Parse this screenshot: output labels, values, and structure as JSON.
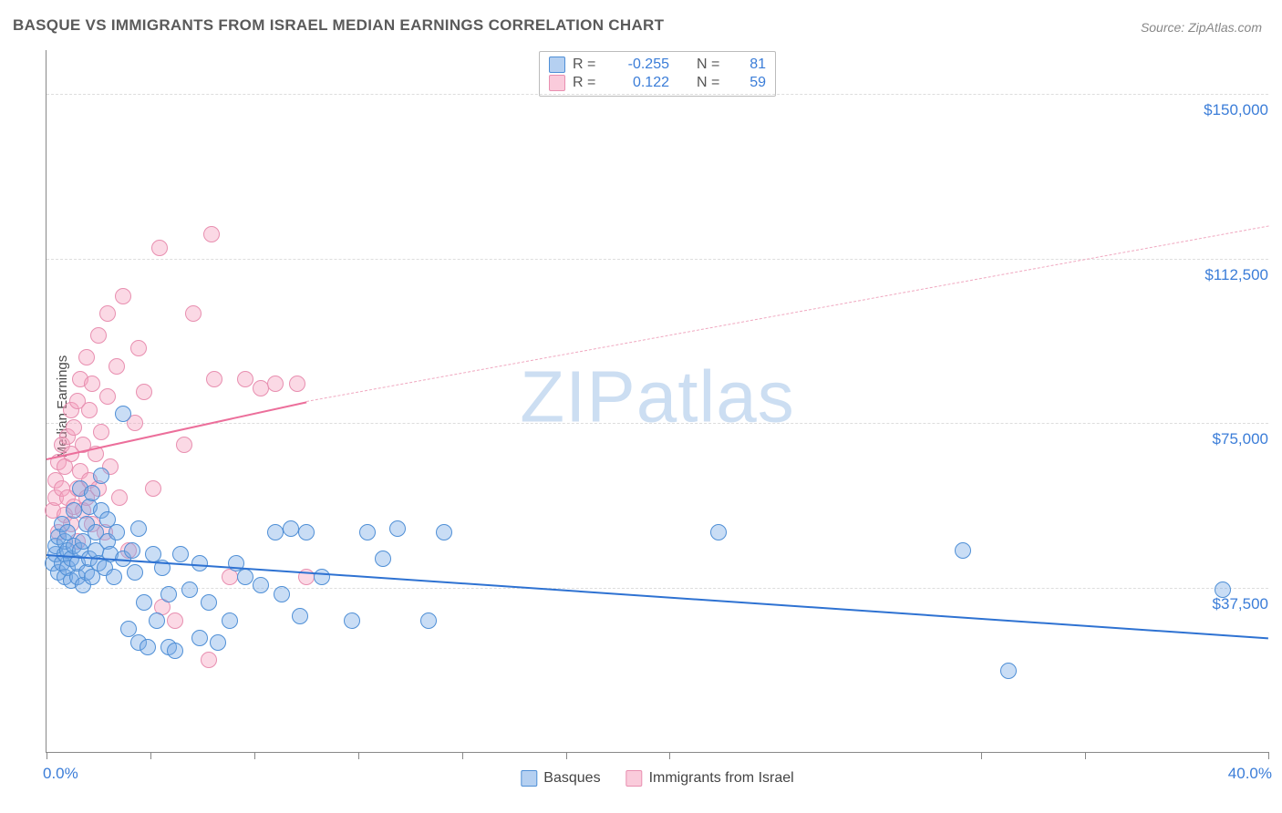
{
  "title": "BASQUE VS IMMIGRANTS FROM ISRAEL MEDIAN EARNINGS CORRELATION CHART",
  "source": "Source: ZipAtlas.com",
  "ylabel": "Median Earnings",
  "watermark_zip": "ZIP",
  "watermark_atlas": "atlas",
  "chart": {
    "type": "scatter",
    "xlim": [
      0,
      40
    ],
    "ylim": [
      0,
      160000
    ],
    "x_tick_positions": [
      0,
      3.4,
      6.8,
      10.2,
      13.6,
      17.0,
      20.4,
      30.6,
      34.0,
      40.0
    ],
    "x_axis_labels": {
      "left": "0.0%",
      "right": "40.0%"
    },
    "y_gridlines": [
      37500,
      75000,
      112500,
      150000
    ],
    "y_tick_labels": [
      "$37,500",
      "$75,000",
      "$112,500",
      "$150,000"
    ],
    "background_color": "#ffffff",
    "grid_color": "#dddddd",
    "axis_color": "#888888",
    "series": {
      "basques": {
        "label": "Basques",
        "legend_label": "Basques",
        "color_fill": "rgba(120,170,230,0.40)",
        "color_stroke": "#4f8fd6",
        "marker_size": 18,
        "R": "-0.255",
        "N": "81",
        "trend": {
          "x1": 0,
          "y1": 45000,
          "x2": 40,
          "y2": 26000,
          "color": "#2e72d2",
          "width": 2.4,
          "dash": false
        },
        "points": [
          [
            0.2,
            43000
          ],
          [
            0.3,
            45000
          ],
          [
            0.3,
            47000
          ],
          [
            0.4,
            41000
          ],
          [
            0.4,
            49000
          ],
          [
            0.5,
            43000
          ],
          [
            0.5,
            52000
          ],
          [
            0.6,
            40000
          ],
          [
            0.6,
            45000
          ],
          [
            0.6,
            48000
          ],
          [
            0.7,
            42000
          ],
          [
            0.7,
            46000
          ],
          [
            0.7,
            50000
          ],
          [
            0.8,
            39000
          ],
          [
            0.8,
            44000
          ],
          [
            0.9,
            47000
          ],
          [
            0.9,
            55000
          ],
          [
            1.0,
            40000
          ],
          [
            1.0,
            43000
          ],
          [
            1.1,
            46000
          ],
          [
            1.1,
            60000
          ],
          [
            1.2,
            38000
          ],
          [
            1.2,
            48000
          ],
          [
            1.3,
            41000
          ],
          [
            1.3,
            52000
          ],
          [
            1.4,
            44000
          ],
          [
            1.4,
            56000
          ],
          [
            1.5,
            40000
          ],
          [
            1.5,
            59000
          ],
          [
            1.6,
            46000
          ],
          [
            1.6,
            50000
          ],
          [
            1.7,
            43000
          ],
          [
            1.8,
            63000
          ],
          [
            1.8,
            55000
          ],
          [
            1.9,
            42000
          ],
          [
            2.0,
            48000
          ],
          [
            2.0,
            53000
          ],
          [
            2.1,
            45000
          ],
          [
            2.2,
            40000
          ],
          [
            2.3,
            50000
          ],
          [
            2.5,
            77000
          ],
          [
            2.5,
            44000
          ],
          [
            2.7,
            28000
          ],
          [
            2.8,
            46000
          ],
          [
            2.9,
            41000
          ],
          [
            3.0,
            25000
          ],
          [
            3.0,
            51000
          ],
          [
            3.2,
            34000
          ],
          [
            3.3,
            24000
          ],
          [
            3.5,
            45000
          ],
          [
            3.6,
            30000
          ],
          [
            3.8,
            42000
          ],
          [
            4.0,
            24000
          ],
          [
            4.0,
            36000
          ],
          [
            4.2,
            23000
          ],
          [
            4.4,
            45000
          ],
          [
            4.7,
            37000
          ],
          [
            5.0,
            26000
          ],
          [
            5.0,
            43000
          ],
          [
            5.3,
            34000
          ],
          [
            5.6,
            25000
          ],
          [
            6.0,
            30000
          ],
          [
            6.2,
            43000
          ],
          [
            6.5,
            40000
          ],
          [
            7.0,
            38000
          ],
          [
            7.5,
            50000
          ],
          [
            7.7,
            36000
          ],
          [
            8.0,
            51000
          ],
          [
            8.3,
            31000
          ],
          [
            8.5,
            50000
          ],
          [
            9.0,
            40000
          ],
          [
            10.0,
            30000
          ],
          [
            10.5,
            50000
          ],
          [
            11.0,
            44000
          ],
          [
            11.5,
            51000
          ],
          [
            12.5,
            30000
          ],
          [
            13.0,
            50000
          ],
          [
            22.0,
            50000
          ],
          [
            30.0,
            46000
          ],
          [
            31.5,
            18500
          ],
          [
            38.5,
            37000
          ]
        ]
      },
      "immigrants": {
        "label": "Immigrants from Israel",
        "legend_label": "Immigrants from Israel",
        "color_fill": "rgba(245,160,190,0.40)",
        "color_stroke": "#e88fb0",
        "marker_size": 18,
        "R": "0.122",
        "N": "59",
        "trend_solid": {
          "x1": 0,
          "y1": 67000,
          "x2": 8.5,
          "y2": 80000,
          "color": "#ec6f9b",
          "width": 2.0
        },
        "trend_dash": {
          "x1": 8.5,
          "y1": 80000,
          "x2": 40,
          "y2": 120000,
          "color": "#f0a8c0",
          "width": 1.5
        },
        "points": [
          [
            0.2,
            55000
          ],
          [
            0.3,
            58000
          ],
          [
            0.3,
            62000
          ],
          [
            0.4,
            50000
          ],
          [
            0.4,
            66000
          ],
          [
            0.5,
            60000
          ],
          [
            0.5,
            70000
          ],
          [
            0.6,
            54000
          ],
          [
            0.6,
            65000
          ],
          [
            0.7,
            58000
          ],
          [
            0.7,
            72000
          ],
          [
            0.8,
            52000
          ],
          [
            0.8,
            68000
          ],
          [
            0.8,
            78000
          ],
          [
            0.9,
            56000
          ],
          [
            0.9,
            74000
          ],
          [
            1.0,
            60000
          ],
          [
            1.0,
            80000
          ],
          [
            1.0,
            48000
          ],
          [
            1.1,
            64000
          ],
          [
            1.1,
            85000
          ],
          [
            1.2,
            55000
          ],
          [
            1.2,
            70000
          ],
          [
            1.3,
            58000
          ],
          [
            1.3,
            90000
          ],
          [
            1.4,
            62000
          ],
          [
            1.4,
            78000
          ],
          [
            1.5,
            52000
          ],
          [
            1.5,
            84000
          ],
          [
            1.6,
            68000
          ],
          [
            1.7,
            95000
          ],
          [
            1.7,
            60000
          ],
          [
            1.8,
            73000
          ],
          [
            1.9,
            50000
          ],
          [
            2.0,
            81000
          ],
          [
            2.0,
            100000
          ],
          [
            2.1,
            65000
          ],
          [
            2.3,
            88000
          ],
          [
            2.4,
            58000
          ],
          [
            2.5,
            104000
          ],
          [
            2.7,
            46000
          ],
          [
            2.9,
            75000
          ],
          [
            3.0,
            92000
          ],
          [
            3.2,
            82000
          ],
          [
            3.5,
            60000
          ],
          [
            3.7,
            115000
          ],
          [
            3.8,
            33000
          ],
          [
            4.2,
            30000
          ],
          [
            4.5,
            70000
          ],
          [
            4.8,
            100000
          ],
          [
            5.3,
            21000
          ],
          [
            5.4,
            118000
          ],
          [
            5.5,
            85000
          ],
          [
            6.0,
            40000
          ],
          [
            6.5,
            85000
          ],
          [
            7.0,
            83000
          ],
          [
            7.5,
            84000
          ],
          [
            8.2,
            84000
          ],
          [
            8.5,
            40000
          ]
        ]
      }
    }
  },
  "stats_box": {
    "rows": [
      {
        "swatch": "b",
        "R_label": "R =",
        "R": "-0.255",
        "N_label": "N =",
        "N": "81"
      },
      {
        "swatch": "p",
        "R_label": "R =",
        "R": "0.122",
        "N_label": "N =",
        "N": "59"
      }
    ]
  },
  "legend": [
    {
      "swatch": "b",
      "label": "Basques"
    },
    {
      "swatch": "p",
      "label": "Immigrants from Israel"
    }
  ]
}
